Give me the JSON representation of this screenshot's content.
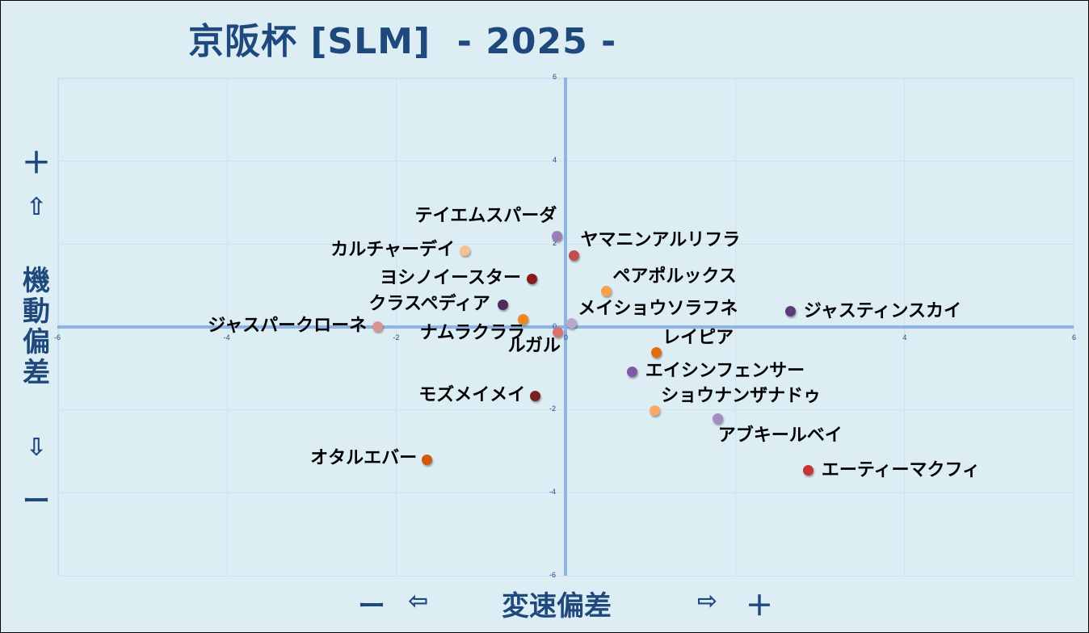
{
  "title": "京阪杯 [SLM]  - 2025 -",
  "y_axis": {
    "plus": "＋",
    "up_arrow": "⇧",
    "label_chars": [
      "機",
      "動",
      "偏",
      "差"
    ],
    "down_arrow": "⇩",
    "minus": "ー"
  },
  "x_axis": {
    "minus": "ー",
    "left_arrow": "⇦",
    "label": "変速偏差",
    "right_arrow": "⇨",
    "plus": "＋"
  },
  "chart_data": {
    "type": "scatter",
    "title": "京阪杯 [SLM] - 2025 -",
    "xlabel": "変速偏差",
    "ylabel": "機動偏差",
    "xlim": [
      -6,
      6
    ],
    "ylim": [
      -6,
      6
    ],
    "x_ticks": [
      -6,
      -4,
      -2,
      0,
      4,
      6
    ],
    "y_ticks": [
      6,
      4,
      2,
      0,
      -2,
      -4,
      -6
    ],
    "grid": true,
    "legend": "none (data labels on points)",
    "points": [
      {
        "name": "テイエムスパーダ",
        "x": -0.1,
        "y": 2.18,
        "color": "#9b7bbd",
        "label_pos": "above-left"
      },
      {
        "name": "ヤマニンアルリフラ",
        "x": 0.1,
        "y": 1.72,
        "color": "#c0504d",
        "label_pos": "above-right"
      },
      {
        "name": "カルチャーデイ",
        "x": -1.19,
        "y": 1.82,
        "color": "#f9bf8f",
        "label_pos": "left"
      },
      {
        "name": "ヨシノイースター",
        "x": -0.4,
        "y": 1.14,
        "color": "#8b1a1a",
        "label_pos": "left"
      },
      {
        "name": "ペアポルックス",
        "x": 0.48,
        "y": 0.85,
        "color": "#f7a14c",
        "label_pos": "above-right"
      },
      {
        "name": "クラスペディア",
        "x": -0.74,
        "y": 0.52,
        "color": "#4b2e5e",
        "label_pos": "left"
      },
      {
        "name": "ナムラクララ",
        "x": -0.5,
        "y": 0.18,
        "color": "#f0861f",
        "label_pos": "below-left"
      },
      {
        "name": "ジャスパークローネ",
        "x": -2.22,
        "y": 0.0,
        "color": "#d99594",
        "label_pos": "left"
      },
      {
        "name": "メイショウソラフネ",
        "x": 0.07,
        "y": 0.07,
        "color": "#b9a7cc",
        "label_pos": "above-right"
      },
      {
        "name": "ルガル",
        "x": -0.09,
        "y": -0.13,
        "color": "#d9716f",
        "label_pos": "below-left"
      },
      {
        "name": "ジャスティンスカイ",
        "x": 2.66,
        "y": 0.36,
        "color": "#5a3a78",
        "label_pos": "right"
      },
      {
        "name": "レイピア",
        "x": 1.07,
        "y": -0.63,
        "color": "#e46c0a",
        "label_pos": "above-right"
      },
      {
        "name": "エイシンフェンサー",
        "x": 0.79,
        "y": -1.08,
        "color": "#7f5aa6",
        "label_pos": "right"
      },
      {
        "name": "モズメイメイ",
        "x": -0.36,
        "y": -1.68,
        "color": "#7b1f1f",
        "label_pos": "left"
      },
      {
        "name": "ショウナンザナドゥ",
        "x": 1.05,
        "y": -2.03,
        "color": "#f9a867",
        "label_pos": "above-right"
      },
      {
        "name": "アブキールベイ",
        "x": 1.8,
        "y": -2.21,
        "color": "#a38cc3",
        "label_pos": "below"
      },
      {
        "name": "オタルエバー",
        "x": -1.64,
        "y": -3.2,
        "color": "#d05a08",
        "label_pos": "left"
      },
      {
        "name": "エーティーマクフィ",
        "x": 2.87,
        "y": -3.47,
        "color": "#c83434",
        "label_pos": "right"
      }
    ]
  },
  "colors": {
    "background": "#dceef4",
    "axis_line": "#8db4e2",
    "grid": "#cfe2f2",
    "title_text": "#1f497d"
  }
}
